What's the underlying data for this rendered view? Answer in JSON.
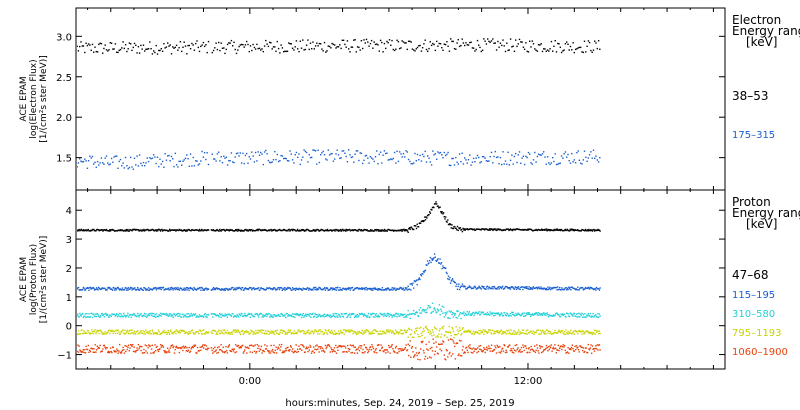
{
  "figure": {
    "xlabel": "hours:minutes, Sep. 24, 2019 – Sep. 25, 2019",
    "x_ticks": [
      {
        "hour": 0,
        "label": "0:00"
      },
      {
        "hour": 12,
        "label": "12:00"
      }
    ],
    "x_range_hours": [
      -7.5,
      20.5
    ],
    "data_end_hour": 15.1,
    "gap_hours": [
      [
        -1.8,
        -1.7
      ]
    ]
  },
  "chart_data": [
    {
      "type": "scatter",
      "panel": "electron",
      "ylabel_lines": [
        "ACE EPAM",
        "log(Electron Flux)",
        "[1/(cm²s ster MeV)]"
      ],
      "ylim": [
        1.1,
        3.35
      ],
      "y_ticks": [
        1.5,
        2.0,
        2.5,
        3.0
      ],
      "y_tick_labels": [
        "1.5",
        "2.0",
        "2.5",
        "3.0"
      ],
      "legend_title_lines": [
        "Electron",
        "Energy ranges",
        "[keV]"
      ],
      "series": [
        {
          "name": "38–53",
          "color": "#000000",
          "base": 2.88,
          "noise": 0.08,
          "profile": [
            [
              -7.5,
              2.86
            ],
            [
              -3,
              2.87
            ],
            [
              4,
              2.89
            ],
            [
              10,
              2.9
            ],
            [
              15.1,
              2.88
            ]
          ]
        },
        {
          "name": "175–315",
          "color": "#1a5fd0",
          "base": 1.5,
          "noise": 0.09,
          "profile": [
            [
              -7.5,
              1.47
            ],
            [
              -6,
              1.44
            ],
            [
              -2,
              1.5
            ],
            [
              4,
              1.52
            ],
            [
              9,
              1.5
            ],
            [
              15.1,
              1.52
            ]
          ]
        }
      ]
    },
    {
      "type": "scatter",
      "panel": "proton",
      "ylabel_lines": [
        "ACE EPAM",
        "log(Proton Flux)",
        "[1/(cm²s ster MeV)]"
      ],
      "ylim": [
        -1.5,
        4.7
      ],
      "y_ticks": [
        -1,
        0,
        1,
        2,
        3,
        4
      ],
      "y_tick_labels": [
        "−1",
        "0",
        "1",
        "2",
        "3",
        "4"
      ],
      "legend_title_lines": [
        "Proton",
        "Energy ranges",
        "[keV]"
      ],
      "series": [
        {
          "name": "47–68",
          "color": "#000000",
          "base": 3.33,
          "noise": 0.03,
          "profile": [
            [
              -7.5,
              3.33
            ],
            [
              6.8,
              3.33
            ],
            [
              7.3,
              3.5
            ],
            [
              7.7,
              3.9
            ],
            [
              8.0,
              4.3
            ],
            [
              8.3,
              3.9
            ],
            [
              8.6,
              3.5
            ],
            [
              9.0,
              3.36
            ],
            [
              15.1,
              3.33
            ]
          ]
        },
        {
          "name": "115–195",
          "color": "#1a5fd0",
          "base": 1.3,
          "noise": 0.05,
          "profile": [
            [
              -7.5,
              1.3
            ],
            [
              6.8,
              1.3
            ],
            [
              7.3,
              1.6
            ],
            [
              7.7,
              2.3
            ],
            [
              8.0,
              2.4
            ],
            [
              8.3,
              2.1
            ],
            [
              8.6,
              1.6
            ],
            [
              9.0,
              1.35
            ],
            [
              15.1,
              1.3
            ]
          ]
        },
        {
          "name": "310–580",
          "color": "#22d0d8",
          "base": 0.38,
          "noise": 0.07,
          "profile": [
            [
              -7.5,
              0.38
            ],
            [
              7.0,
              0.38
            ],
            [
              7.6,
              0.6
            ],
            [
              8.0,
              0.65
            ],
            [
              8.5,
              0.45
            ],
            [
              15.1,
              0.38
            ]
          ]
        },
        {
          "name": "795–1193",
          "color": "#c8d400",
          "base": -0.2,
          "noise": 0.08,
          "profile": [
            [
              -7.5,
              -0.2
            ],
            [
              15.1,
              -0.2
            ]
          ]
        },
        {
          "name": "1060–1900",
          "color": "#e8400a",
          "base": -0.78,
          "noise": 0.15,
          "profile": [
            [
              -7.5,
              -0.78
            ],
            [
              15.1,
              -0.78
            ]
          ]
        }
      ]
    }
  ]
}
